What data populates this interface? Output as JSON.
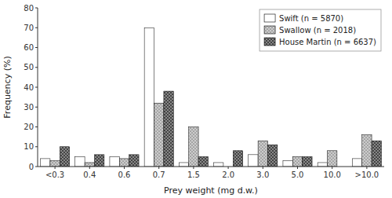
{
  "chart_data": {
    "type": "bar",
    "x_label": "Prey weight (mg d.w.)",
    "y_label": "Frequency (%)",
    "categories": [
      "<0.3",
      "0.4",
      "0.6",
      "0.7",
      "1.5",
      "2.0",
      "3.0",
      "5.0",
      "10.0",
      ">10.0"
    ],
    "series": [
      {
        "name": "Swift (n = 5870)",
        "color": "#ffffff",
        "values": [
          4,
          5,
          5,
          70,
          2,
          2,
          6,
          3,
          2,
          4
        ]
      },
      {
        "name": "Swallow (n = 2018)",
        "color": "#cccccc",
        "values": [
          3,
          2,
          4,
          32,
          20,
          0,
          13,
          5,
          8,
          16
        ]
      },
      {
        "name": "House Martin (n = 6637)",
        "color": "#888888",
        "values": [
          10,
          6,
          6,
          38,
          5,
          8,
          11,
          5,
          0,
          13
        ]
      }
    ],
    "ylim": [
      0,
      80
    ],
    "yticks": [
      0,
      10,
      20,
      30,
      40,
      50,
      60,
      70,
      80
    ],
    "grid": false,
    "legend": "upper right"
  }
}
